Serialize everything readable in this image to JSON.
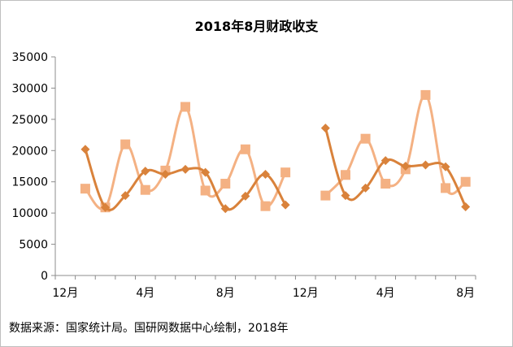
{
  "title": "2018年8月财政收支",
  "source": "数据来源：国家统计局。国研网数据中心绘制，2018年",
  "chart_data": {
    "type": "line",
    "ylim": [
      0,
      35000
    ],
    "yticks": [
      0,
      5000,
      10000,
      15000,
      20000,
      25000,
      30000,
      35000
    ],
    "x_tick_labels": [
      {
        "i": 0,
        "label": "12月"
      },
      {
        "i": 4,
        "label": "4月"
      },
      {
        "i": 8,
        "label": "8月"
      },
      {
        "i": 12,
        "label": "12月"
      },
      {
        "i": 16,
        "label": "4月"
      },
      {
        "i": 20,
        "label": "8月"
      }
    ],
    "series": [
      {
        "color": "#d9823b",
        "marker": "diamond",
        "x": [
          1,
          2,
          3,
          4,
          5,
          6,
          7,
          8,
          9,
          10,
          11,
          13,
          14,
          15,
          16,
          17,
          18,
          19,
          20
        ],
        "values": [
          20200,
          10900,
          12800,
          16700,
          16200,
          17000,
          16500,
          10700,
          12700,
          16200,
          11300,
          23600,
          12800,
          14000,
          18400,
          17500,
          17700,
          17400,
          11000
        ]
      },
      {
        "color": "#f4b183",
        "marker": "square",
        "x": [
          1,
          2,
          3,
          4,
          5,
          6,
          7,
          8,
          9,
          10,
          11,
          13,
          14,
          15,
          16,
          17,
          18,
          19,
          20
        ],
        "values": [
          13900,
          10900,
          21000,
          13700,
          16800,
          27000,
          13600,
          14700,
          20200,
          11100,
          16500,
          12800,
          16100,
          21900,
          14700,
          17000,
          28900,
          14000,
          15000
        ]
      }
    ],
    "segments": [
      [
        1,
        11
      ],
      [
        13,
        20
      ]
    ]
  }
}
